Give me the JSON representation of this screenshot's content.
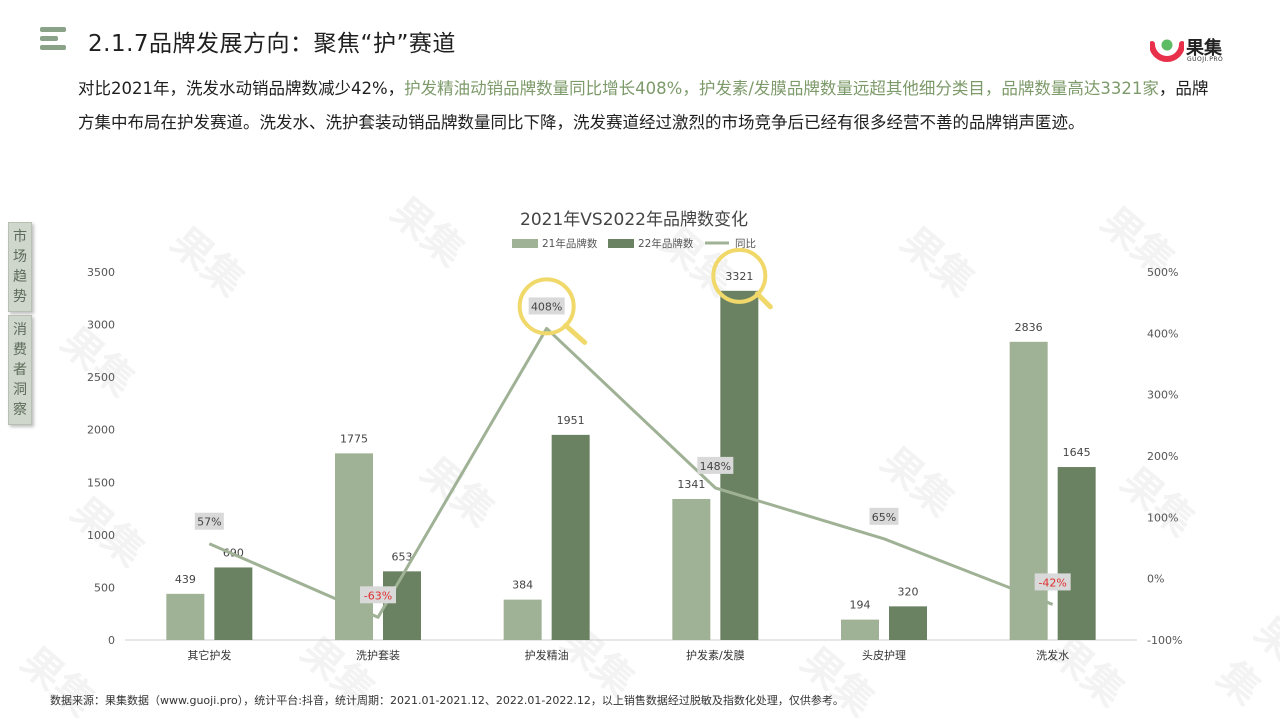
{
  "header": {
    "title": "2.1.7品牌发展方向：聚焦“护”赛道",
    "logo_text": "果集",
    "logo_sub": "GUOJI.PRO"
  },
  "description": {
    "part1": "对比2021年，洗发水动销品牌数减少42%，",
    "part2_hl": "护发精油动销品牌数量同比增长408%，护发素/发膜品牌数量远超其他细分类目，品牌数量高达3321家",
    "part3": "，品牌方集中布局在护发赛道。洗发水、洗护套装动销品牌数量同比下降，洗发赛道经过激烈的市场竞争后已经有很多经营不善的品牌销声匿迹。"
  },
  "side_tabs": [
    "市场趋势",
    "消费者洞察"
  ],
  "watermark": "果集",
  "colors": {
    "bar21": "#a0b296",
    "bar22": "#6b8262",
    "line": "#a0b296",
    "highlight_circle": "#f0d96a",
    "negative_label": "#e03030"
  },
  "chart_data": {
    "type": "bar",
    "title": "2021年VS2022年品牌数变化",
    "categories": [
      "其它护发",
      "洗护套装",
      "护发精油",
      "护发素/发膜",
      "头皮护理",
      "洗发水"
    ],
    "series": [
      {
        "name": "21年品牌数",
        "type": "bar",
        "values": [
          439,
          1775,
          384,
          1341,
          194,
          2836
        ]
      },
      {
        "name": "22年品牌数",
        "type": "bar",
        "values": [
          690,
          653,
          1951,
          3321,
          320,
          1645
        ]
      },
      {
        "name": "同比",
        "type": "line",
        "axis": "right",
        "values": [
          57,
          -63,
          408,
          148,
          65,
          -42
        ],
        "labels": [
          "57%",
          "-63%",
          "408%",
          "148%",
          "65%",
          "-42%"
        ]
      }
    ],
    "ylim": [
      0,
      3500
    ],
    "yticks": [
      "0",
      "500",
      "1000",
      "1500",
      "2000",
      "2500",
      "3000",
      "3500"
    ],
    "y2lim": [
      -100,
      500
    ],
    "y2ticks": [
      "-100%",
      "0%",
      "100%",
      "200%",
      "300%",
      "400%",
      "500%"
    ],
    "legend": "top-center",
    "grid": false,
    "highlighted": [
      "护发精油",
      "护发素/发膜"
    ]
  },
  "footer": {
    "source": "数据来源：果集数据（www.guoji.pro），统计平台:抖音，统计周期：2021.01-2021.12、2022.01-2022.12，以上销售数据经过脱敏及指数化处理，仅供参考。"
  }
}
